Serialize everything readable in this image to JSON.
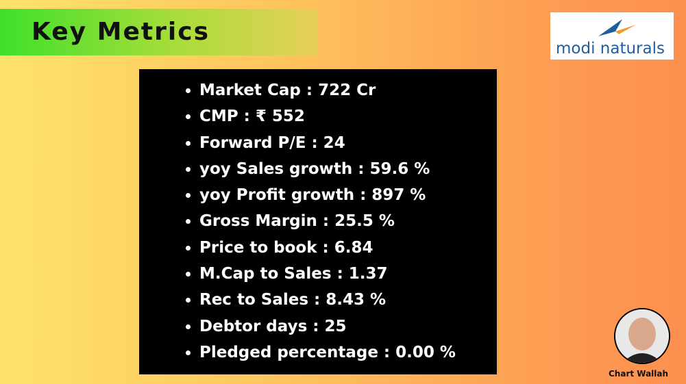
{
  "header": {
    "title": "Key Metrics"
  },
  "logo": {
    "text": "modi naturals"
  },
  "metrics": [
    "Market Cap : 722 Cr",
    "CMP : ₹ 552",
    "Forward P/E : 24",
    "yoy Sales growth : 59.6 %",
    "yoy Profit growth : 897 %",
    "Gross Margin : 25.5 %",
    "Price to book : 6.84",
    "M.Cap to Sales : 1.37",
    "Rec to Sales : 8.43 %",
    "Debtor days : 25",
    "Pledged percentage : 0.00 %"
  ],
  "footer": {
    "brand": "Chart Wallah"
  }
}
